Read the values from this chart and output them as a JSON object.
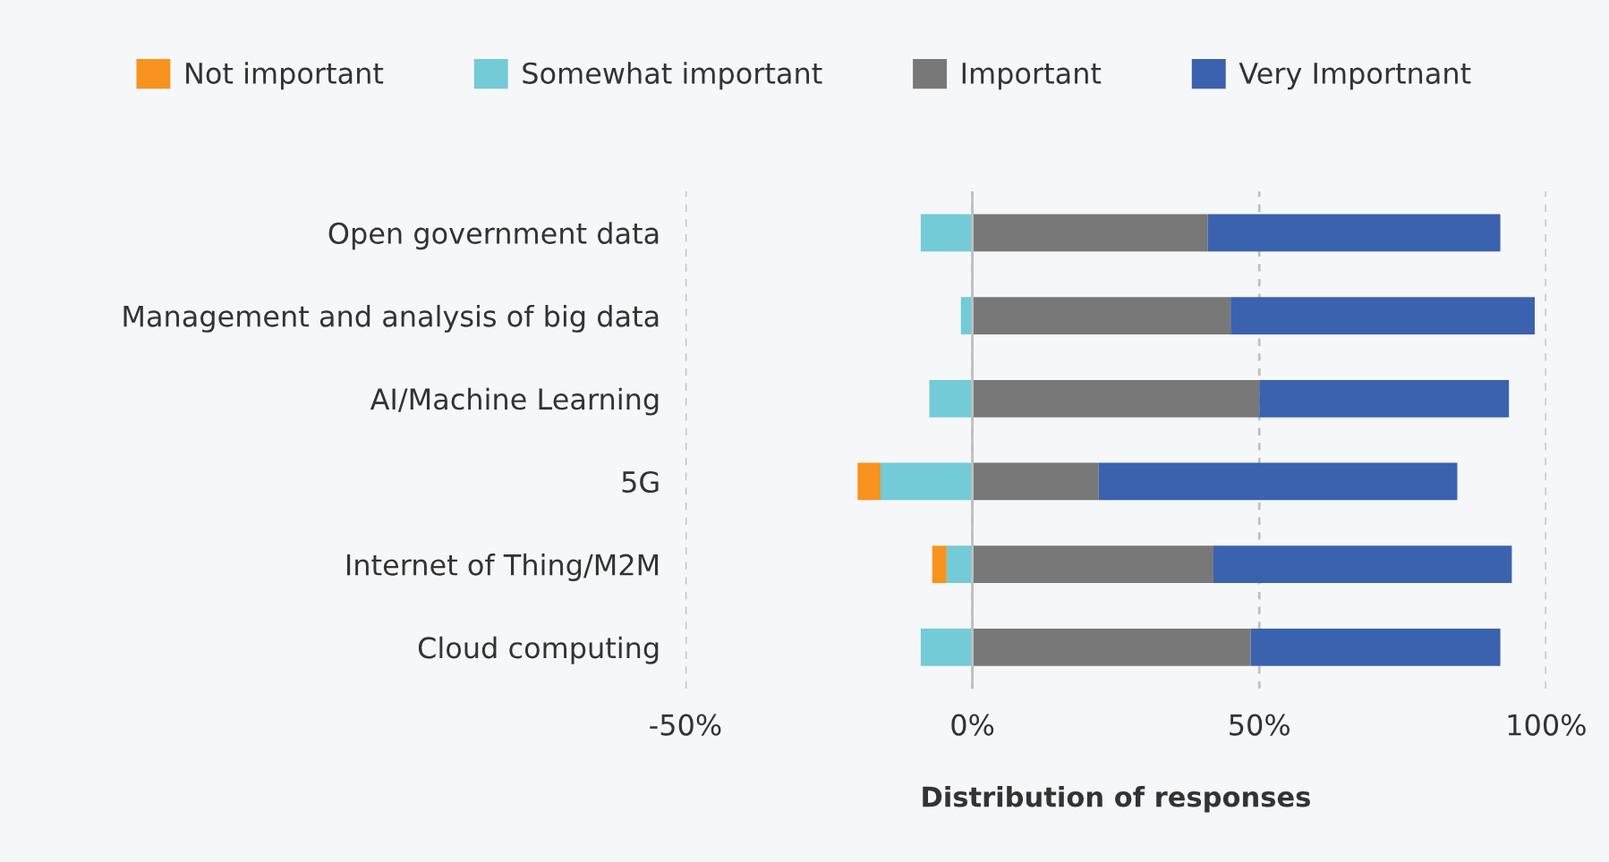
{
  "chart_data": {
    "type": "bar",
    "orientation": "horizontal",
    "stacked": true,
    "xlabel": "Distribution of responses",
    "categories": [
      "Open government data",
      "Management and analysis of big data",
      "AI/Machine Learning",
      "5G",
      "Internet of Thing/M2M",
      "Cloud computing"
    ],
    "series": [
      {
        "name": "Not important",
        "color": "#f7931e",
        "values": [
          null,
          null,
          null,
          -4,
          -2.5,
          null
        ]
      },
      {
        "name": "Somewhat important",
        "color": "#72cbd6",
        "values": [
          -9,
          -2,
          -7.5,
          -16,
          -4.5,
          -9
        ]
      },
      {
        "name": "Important",
        "color": "#787878",
        "values": [
          41,
          45,
          50,
          22,
          42,
          48.5
        ]
      },
      {
        "name": "Very Importnant",
        "color": "#3a62ae",
        "values": [
          51,
          53,
          43.5,
          62.5,
          52,
          43.5
        ]
      }
    ],
    "xlim": [
      -50,
      100
    ],
    "xticks": [
      {
        "value": -50,
        "label": "-50%"
      },
      {
        "value": 0,
        "label": "0%"
      },
      {
        "value": 50,
        "label": "50%"
      },
      {
        "value": 100,
        "label": "100%"
      }
    ],
    "grid": "x",
    "legend": "top",
    "ref_lines": [
      {
        "axis": "x",
        "value": 0,
        "color": "#bfbfbf",
        "line_style": "solid"
      }
    ]
  }
}
